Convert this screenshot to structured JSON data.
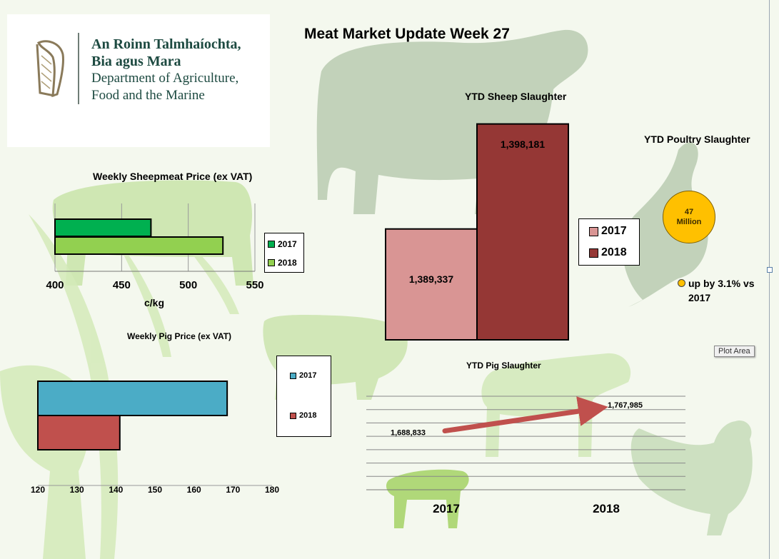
{
  "page_title": "Meat Market Update Week 27",
  "logo": {
    "line1": "An Roinn Talmhaíochta,",
    "line2": "Bia agus Mara",
    "line3": "Department of Agriculture,",
    "line4": "Food and the Marine"
  },
  "tooltip": "Plot Area",
  "colors": {
    "sheep_2017": "#00b050",
    "sheep_2018": "#92d050",
    "pig_2017": "#4bacc6",
    "pig_2018": "#c0504d",
    "slaughter_2017": "#d99594",
    "slaughter_2018": "#953735",
    "poultry": "#ffc000",
    "arrow": "#c0504d"
  },
  "chart_data": [
    {
      "id": "sheepmeat_price",
      "type": "bar",
      "orientation": "horizontal",
      "title": "Weekly Sheepmeat Price (ex VAT)",
      "xlabel": "c/kg",
      "xlim": [
        400,
        550
      ],
      "ticks": [
        400,
        450,
        500,
        550
      ],
      "legend_position": "right",
      "series": [
        {
          "name": "2017",
          "value": 472
        },
        {
          "name": "2018",
          "value": 526
        }
      ]
    },
    {
      "id": "pig_price",
      "type": "bar",
      "orientation": "horizontal",
      "title": "Weekly Pig Price (ex VAT)",
      "xlim": [
        120,
        180
      ],
      "ticks": [
        120,
        130,
        140,
        150,
        160,
        170,
        180
      ],
      "legend_position": "right",
      "series": [
        {
          "name": "2017",
          "value": 168.5
        },
        {
          "name": "2018",
          "value": 141
        }
      ]
    },
    {
      "id": "sheep_slaughter",
      "type": "bar",
      "title": "YTD Sheep Slaughter",
      "legend_position": "right",
      "series": [
        {
          "name": "2017",
          "value": 1389337,
          "label": "1,389,337"
        },
        {
          "name": "2018",
          "value": 1398181,
          "label": "1,398,181"
        }
      ]
    },
    {
      "id": "poultry_slaughter",
      "type": "scatter",
      "title": "YTD Poultry Slaughter",
      "value_label": "47 Million",
      "note": "up by 3.1% vs 2017"
    },
    {
      "id": "pig_slaughter",
      "type": "line",
      "title": "YTD Pig Slaughter",
      "categories": [
        "2017",
        "2018"
      ],
      "values": [
        1688833,
        1767985
      ],
      "labels": [
        "1,688,833",
        "1,767,985"
      ],
      "ylim": [
        1500000,
        1800000
      ],
      "grid": true
    }
  ]
}
